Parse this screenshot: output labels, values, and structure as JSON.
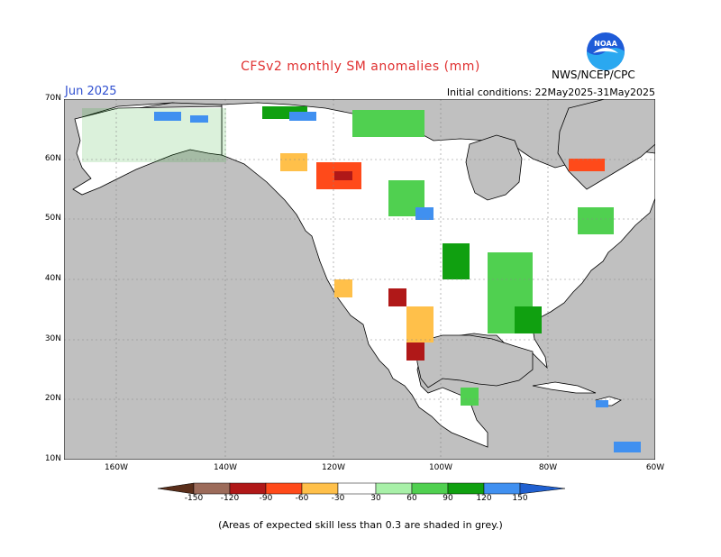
{
  "title": "CFSv2 monthly SM anomalies (mm)",
  "month": "Jun 2025",
  "initial_conditions": "Initial conditions: 22May2025-31May2025",
  "agency": "NWS/NCEP/CPC",
  "logo_text": "NOAA",
  "footnote": "(Areas of expected skill less than 0.3 are shaded in grey.)",
  "lat_labels": [
    "70N",
    "60N",
    "50N",
    "40N",
    "30N",
    "20N",
    "10N"
  ],
  "lon_labels": [
    "160W",
    "140W",
    "120W",
    "100W",
    "80W",
    "60W"
  ],
  "colorbar": {
    "labels": [
      "-150",
      "-120",
      "-90",
      "-60",
      "-30",
      "30",
      "60",
      "90",
      "120",
      "150"
    ],
    "colors": [
      "#5a2e1a",
      "#9c6b5a",
      "#b01818",
      "#ff4a1a",
      "#ffc04a",
      "#ffffff",
      "#a8f0a8",
      "#50d050",
      "#10a010",
      "#4090f0",
      "#2060d0"
    ]
  },
  "map_colors": {
    "ocean": "#c0c0c0",
    "land": "#ffffff",
    "grey_skill": "#c0c0c0"
  }
}
